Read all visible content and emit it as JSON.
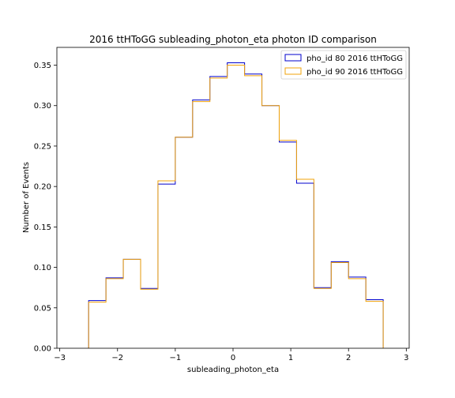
{
  "chart_data": {
    "type": "histogram-step",
    "title": "2016 ttHToGG subleading_photon_eta photon ID comparison",
    "xlabel": "subleading_photon_eta",
    "ylabel": "Number of Events",
    "xlim": [
      -3.05,
      3.05
    ],
    "ylim": [
      0.0,
      0.372
    ],
    "xticks": [
      -3,
      -2,
      -1,
      0,
      1,
      2,
      3
    ],
    "xtick_labels": [
      "−3",
      "−2",
      "−1",
      "0",
      "1",
      "2",
      "3"
    ],
    "yticks": [
      0.0,
      0.05,
      0.1,
      0.15,
      0.2,
      0.25,
      0.3,
      0.35
    ],
    "ytick_labels": [
      "0.00",
      "0.05",
      "0.10",
      "0.15",
      "0.20",
      "0.25",
      "0.30",
      "0.35"
    ],
    "grid": false,
    "legend_position": "top-right",
    "bin_edges": [
      -2.5,
      -2.2,
      -1.9,
      -1.6,
      -1.3,
      -1.0,
      -0.7,
      -0.4,
      -0.1,
      0.2,
      0.5,
      0.8,
      1.1,
      1.4,
      1.7,
      2.0,
      2.3,
      2.6
    ],
    "series": [
      {
        "name": "pho_id 80 2016 ttHToGG",
        "color": "#0000cc",
        "values": [
          0.059,
          0.087,
          0.11,
          0.074,
          0.203,
          0.261,
          0.307,
          0.336,
          0.353,
          0.339,
          0.3,
          0.255,
          0.204,
          0.075,
          0.107,
          0.088,
          0.06
        ]
      },
      {
        "name": "pho_id 90 2016 ttHToGG",
        "color": "#f0a30a",
        "values": [
          0.057,
          0.086,
          0.11,
          0.073,
          0.207,
          0.261,
          0.305,
          0.334,
          0.35,
          0.337,
          0.3,
          0.257,
          0.209,
          0.074,
          0.106,
          0.086,
          0.058
        ]
      }
    ]
  }
}
